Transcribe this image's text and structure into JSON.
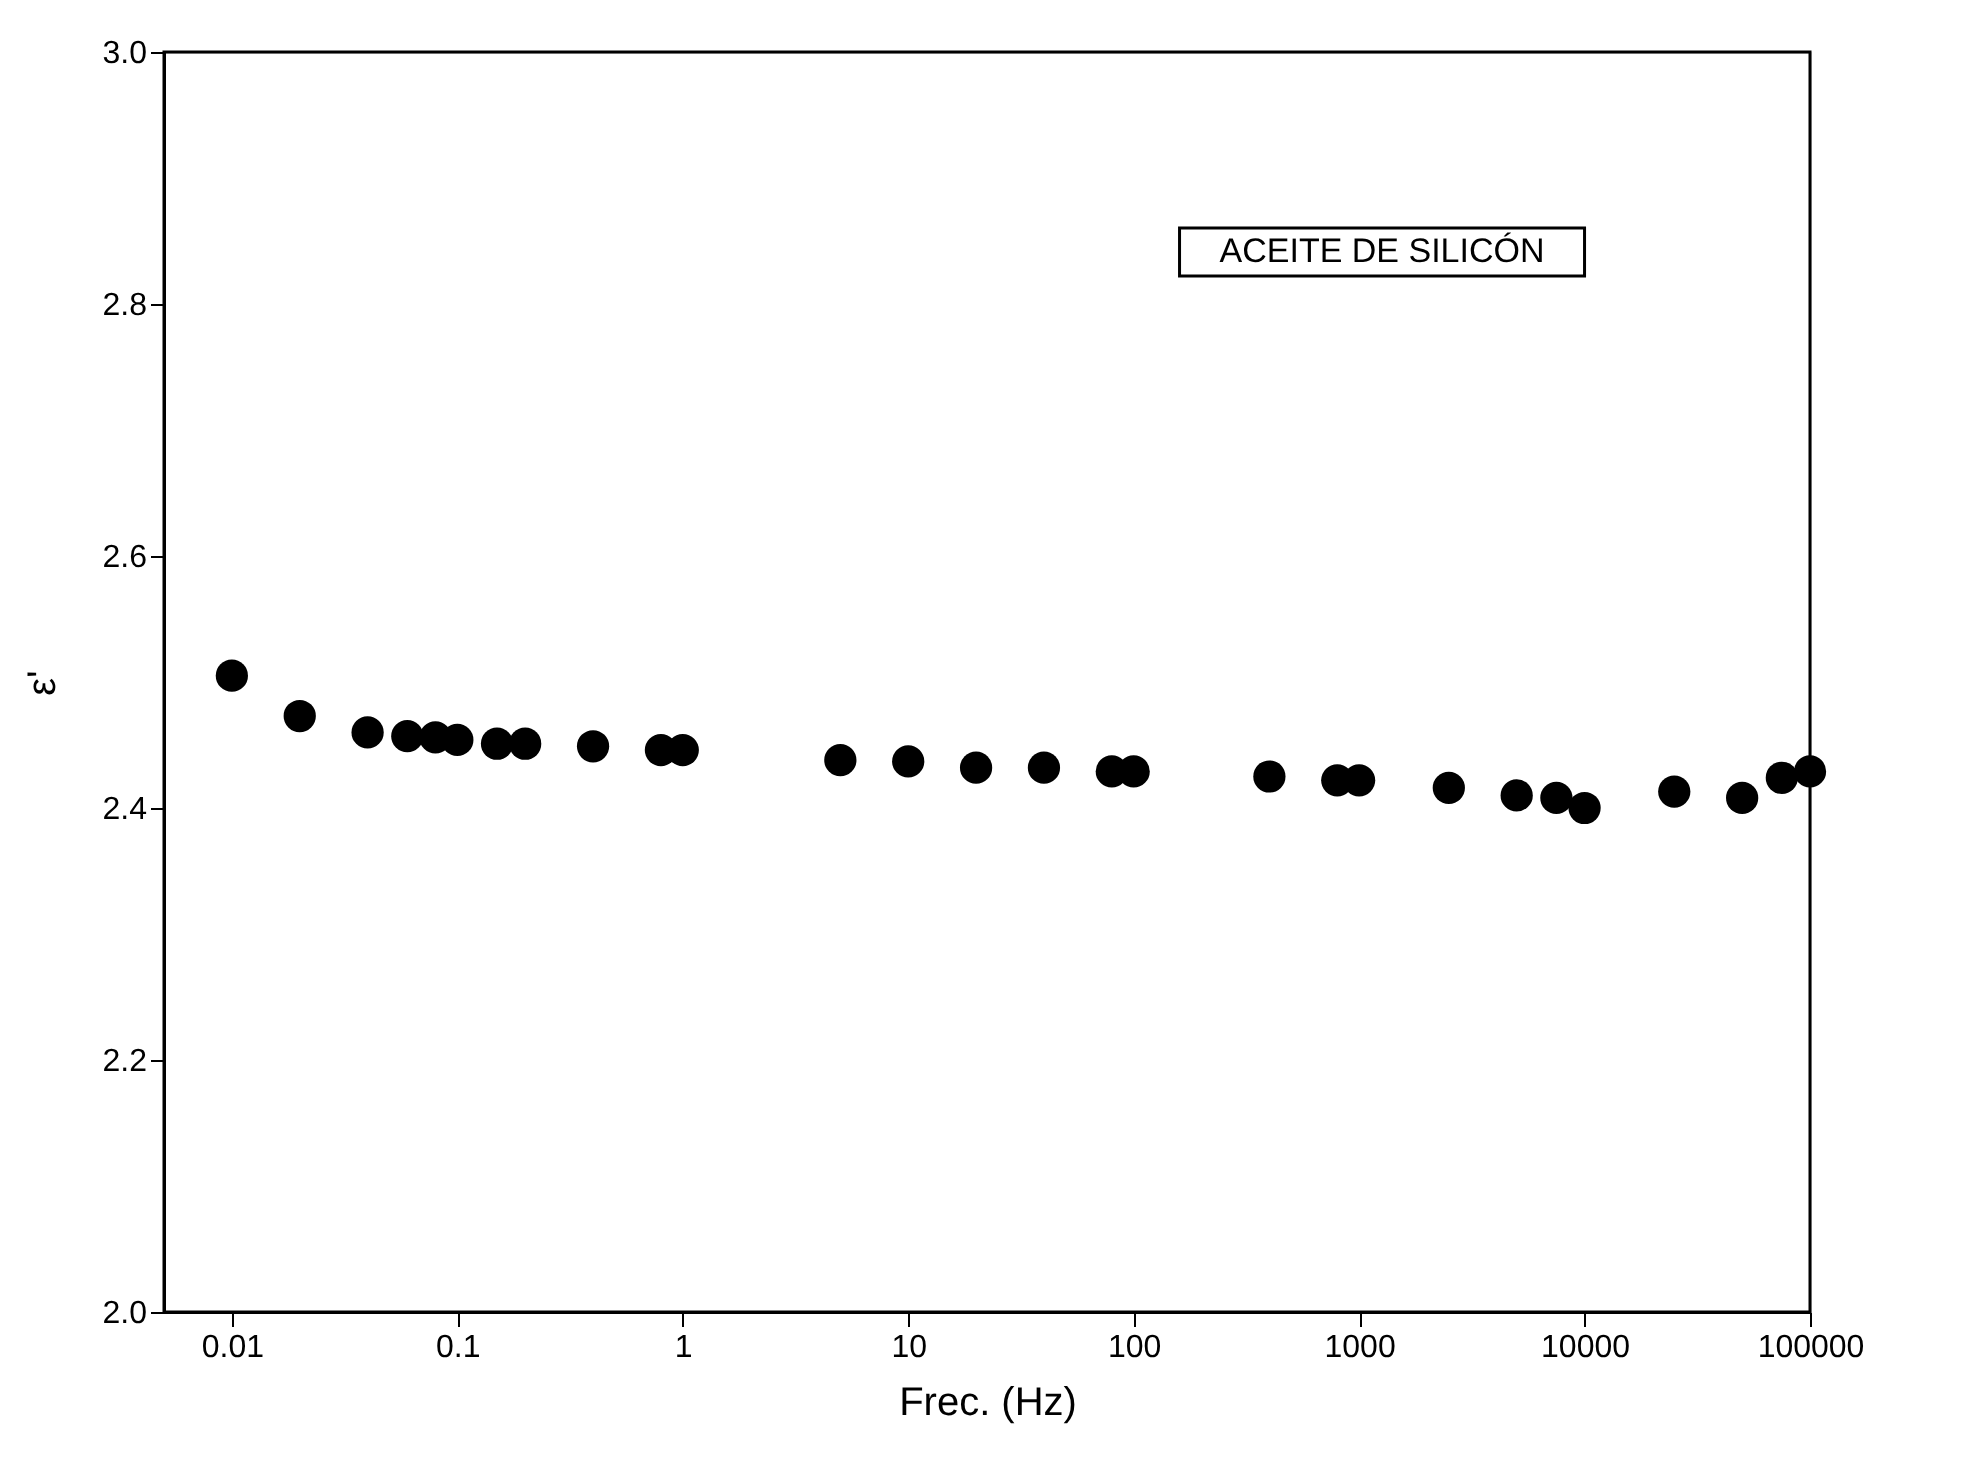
{
  "chart_data": {
    "type": "scatter",
    "xlabel": "Frec. (Hz)",
    "ylabel": "ε'",
    "annotations": [
      "ACEITE DE SILICÓN"
    ],
    "x": [
      0.01,
      0.02,
      0.04,
      0.06,
      0.08,
      0.1,
      0.15,
      0.2,
      0.4,
      0.8,
      1,
      5,
      10,
      20,
      40,
      80,
      100,
      400,
      800,
      1000,
      2500,
      5000,
      7500,
      10000,
      25000,
      50000,
      75000,
      100000
    ],
    "series": [
      {
        "color": "#000000",
        "values": [
          2.505,
          2.473,
          2.46,
          2.457,
          2.456,
          2.454,
          2.451,
          2.451,
          2.449,
          2.446,
          2.446,
          2.438,
          2.437,
          2.432,
          2.432,
          2.429,
          2.429,
          2.425,
          2.422,
          2.422,
          2.416,
          2.41,
          2.408,
          2.4,
          2.413,
          2.408,
          2.424,
          2.429
        ]
      }
    ],
    "log": "x",
    "marker": "circle",
    "xlim": [
      0.005,
      100000
    ],
    "xticks": [
      0.01,
      0.1,
      1,
      10,
      100,
      1000,
      10000,
      100000
    ],
    "ylim": [
      2.0,
      3.0
    ],
    "yticks": [
      {
        "value": 2.0,
        "label": "2.0"
      },
      2.2,
      2.4,
      2.6,
      2.8,
      {
        "value": 3.0,
        "label": "3.0"
      }
    ],
    "grid": false,
    "legend": false
  }
}
